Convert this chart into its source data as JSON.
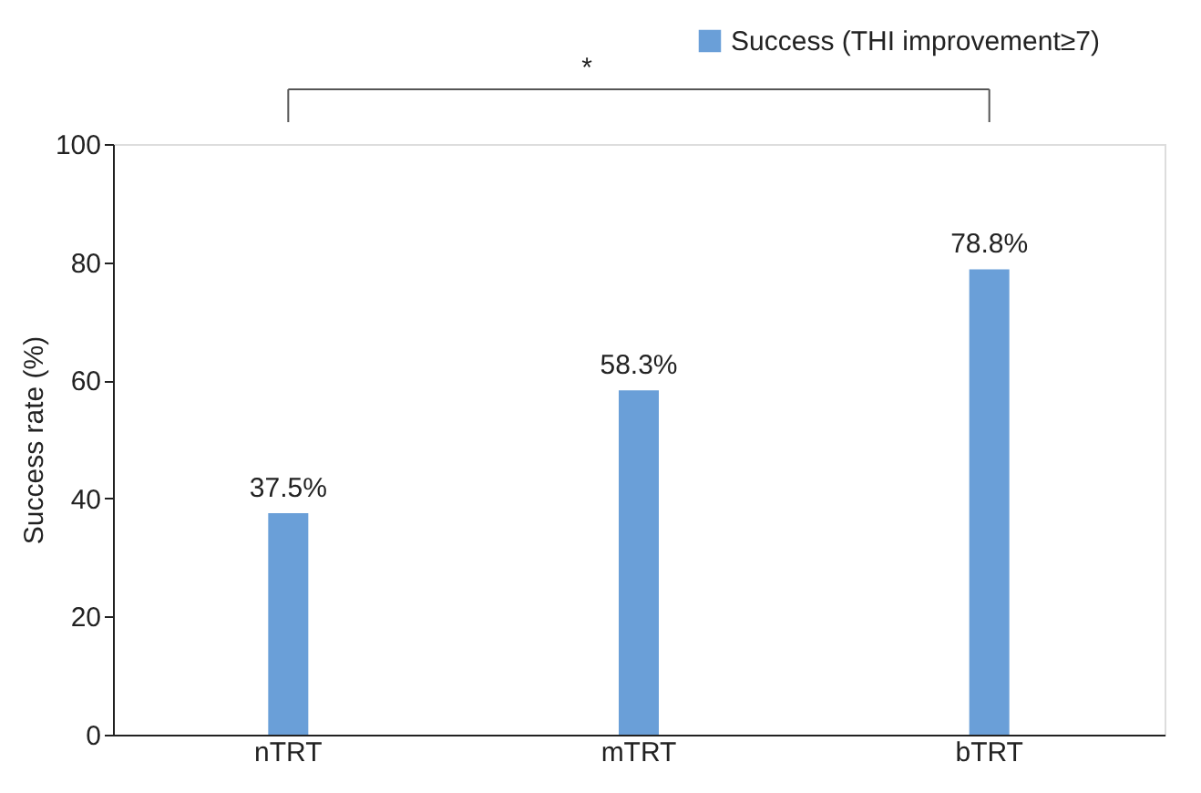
{
  "chart_data": {
    "type": "bar",
    "ylabel": "Success rate (%)",
    "categories": [
      "nTRT",
      "mTRT",
      "bTRT"
    ],
    "series": [
      {
        "name": "Success (THI improvement≥7)",
        "color": "#6a9fd8",
        "values": [
          37.5,
          58.3,
          78.8
        ]
      }
    ],
    "value_labels": [
      "37.5%",
      "58.3%",
      "78.8%"
    ],
    "ylim": [
      0,
      100
    ],
    "yticks": [
      0,
      20,
      40,
      60,
      80,
      100
    ],
    "grid": false,
    "legend": "top right",
    "annotations": [
      "*"
    ]
  }
}
